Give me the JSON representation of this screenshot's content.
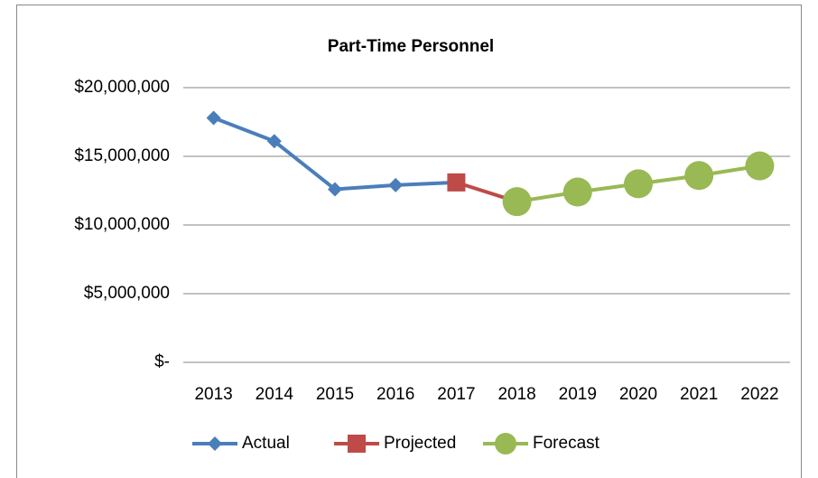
{
  "chart_data": {
    "type": "line",
    "title": "Part-Time Personnel",
    "categories": [
      "2013",
      "2014",
      "2015",
      "2016",
      "2017",
      "2018",
      "2019",
      "2020",
      "2021",
      "2022"
    ],
    "series": [
      {
        "name": "Actual",
        "color": "#4a7ebb",
        "marker": "diamond",
        "values": [
          17800000,
          16100000,
          12600000,
          12900000,
          13100000,
          null,
          null,
          null,
          null,
          null
        ]
      },
      {
        "name": "Projected",
        "color": "#be4b48",
        "marker": "square",
        "values": [
          null,
          null,
          null,
          null,
          13100000,
          11700000,
          null,
          null,
          null,
          null
        ]
      },
      {
        "name": "Forecast",
        "color": "#98b954",
        "marker": "circle",
        "values": [
          null,
          null,
          null,
          null,
          null,
          11700000,
          12400000,
          13000000,
          13600000,
          14300000
        ]
      }
    ],
    "ylim": [
      0,
      20000000
    ],
    "yticks": [
      {
        "value": 0,
        "label": "$-"
      },
      {
        "value": 5000000,
        "label": "$5,000,000"
      },
      {
        "value": 10000000,
        "label": "$10,000,000"
      },
      {
        "value": 15000000,
        "label": "$15,000,000"
      },
      {
        "value": 20000000,
        "label": "$20,000,000"
      }
    ],
    "grid": true,
    "legend": "bottom"
  }
}
